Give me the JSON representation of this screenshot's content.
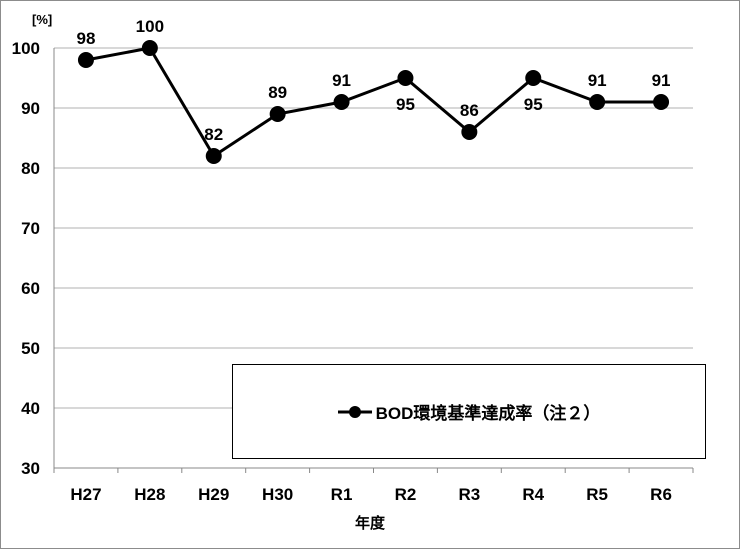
{
  "chart_data": {
    "type": "line",
    "title": "",
    "xlabel": "年度",
    "ylabel": "[%]",
    "ylim": [
      30,
      100
    ],
    "yticks": [
      30,
      40,
      50,
      60,
      70,
      80,
      90,
      100
    ],
    "grid": true,
    "legend_position": "inside-lower-right",
    "categories": [
      "H27",
      "H28",
      "H29",
      "H30",
      "R1",
      "R2",
      "R3",
      "R4",
      "R5",
      "R6"
    ],
    "series": [
      {
        "name": "BOD環境基準達成率（注２）",
        "values": [
          98,
          100,
          82,
          89,
          91,
          95,
          86,
          95,
          91,
          91
        ],
        "color": "#000000",
        "marker": "circle"
      }
    ]
  },
  "labels": {
    "unit": "[%]",
    "xlabel": "年度",
    "legend": "BOD環境基準達成率（注２）"
  }
}
